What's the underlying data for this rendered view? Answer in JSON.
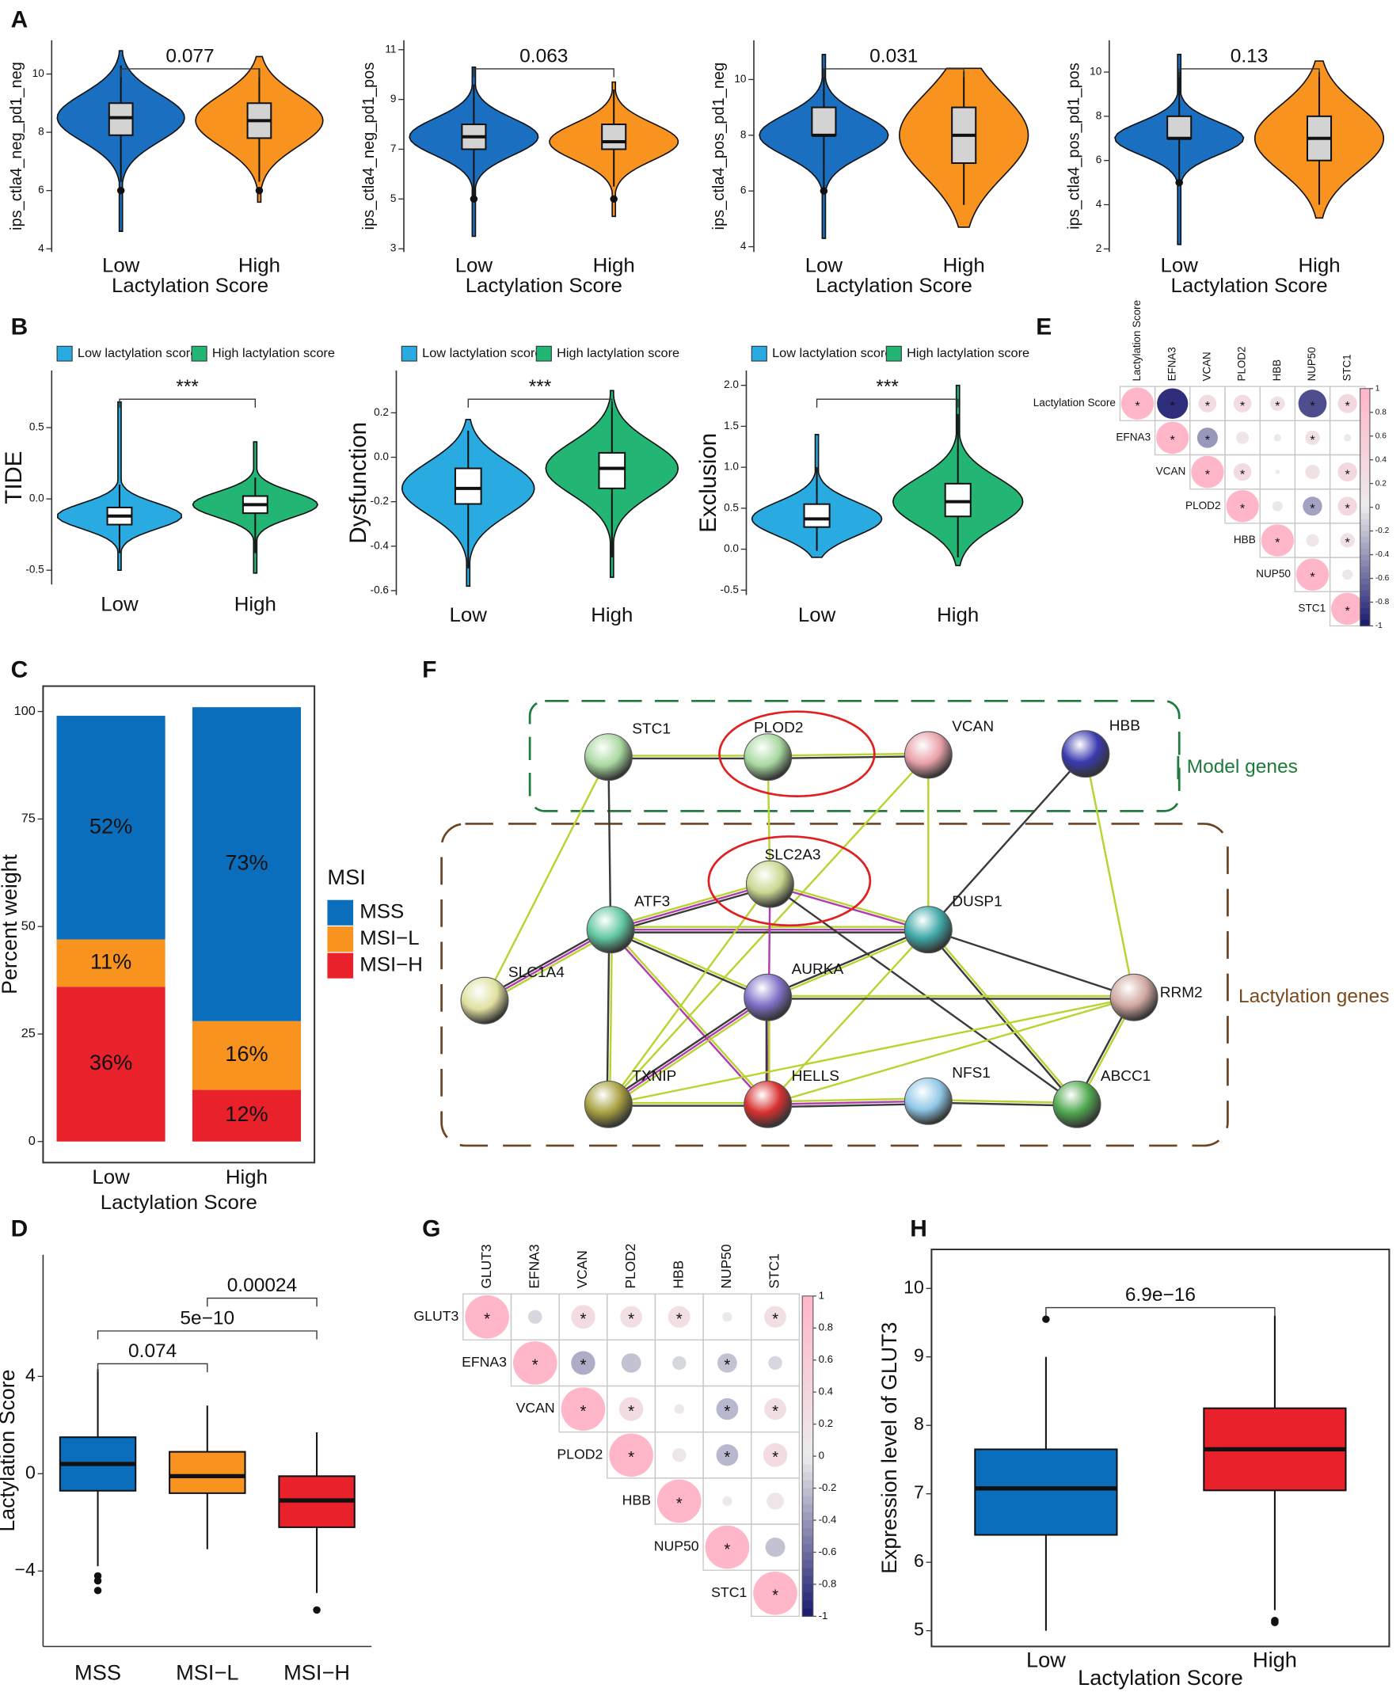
{
  "panel_letters": [
    "A",
    "B",
    "C",
    "D",
    "E",
    "F",
    "G",
    "H"
  ],
  "chart_data": [
    {
      "type": "violin",
      "ylabel": "ips_ctla4_neg_pd1_neg",
      "xlabel": "Lactylation Score",
      "categories": [
        "Low",
        "High"
      ],
      "colors": [
        "#1a6fc0",
        "#f7931e"
      ],
      "ylim": [
        3.89,
        11.16
      ],
      "yticks": [
        4,
        6,
        8,
        10
      ],
      "boxes": [
        {
          "min": 4.6,
          "whisker_low": 6.3,
          "q1": 7.9,
          "median": 8.5,
          "q3": 9.0,
          "whisker_high": 10.3,
          "max": 10.8,
          "outliers": [
            6.0
          ]
        },
        {
          "min": 5.6,
          "whisker_low": 6.3,
          "q1": 7.8,
          "median": 8.4,
          "q3": 9.0,
          "whisker_high": 10.2,
          "max": 10.6,
          "outliers": [
            6.0
          ]
        }
      ],
      "comparisons": [
        {
          "from": "Low",
          "to": "High",
          "label": "0.077"
        }
      ]
    },
    {
      "type": "violin",
      "ylabel": "ips_ctla4_neg_pd1_pos",
      "xlabel": "Lactylation Score",
      "categories": [
        "Low",
        "High"
      ],
      "colors": [
        "#1a6fc0",
        "#f7931e"
      ],
      "ylim": [
        2.87,
        11.38
      ],
      "yticks": [
        3,
        5,
        7,
        9,
        11
      ],
      "boxes": [
        {
          "min": 3.5,
          "whisker_low": 5.0,
          "q1": 7.0,
          "median": 7.5,
          "q3": 8.0,
          "whisker_high": 9.6,
          "max": 10.3,
          "outliers": [
            5.0
          ]
        },
        {
          "min": 4.3,
          "whisker_low": 5.5,
          "q1": 7.0,
          "median": 7.3,
          "q3": 8.0,
          "whisker_high": 9.4,
          "max": 9.7,
          "outliers": [
            5.0
          ]
        }
      ],
      "comparisons": [
        {
          "from": "Low",
          "to": "High",
          "label": "0.063"
        }
      ]
    },
    {
      "type": "violin",
      "ylabel": "ips_ctla4_pos_pd1_neg",
      "xlabel": "Lactylation Score",
      "categories": [
        "Low",
        "High"
      ],
      "colors": [
        "#1a6fc0",
        "#f7931e"
      ],
      "ylim": [
        3.81,
        11.41
      ],
      "yticks": [
        4,
        6,
        8,
        10
      ],
      "boxes": [
        {
          "min": 4.3,
          "whisker_low": 6.0,
          "q1": 8.0,
          "median": 8.0,
          "q3": 9.0,
          "whisker_high": 10.4,
          "max": 10.9,
          "outliers": [
            6.0
          ]
        },
        {
          "min": 4.7,
          "whisker_low": 5.5,
          "q1": 7.0,
          "median": 8.0,
          "q3": 9.0,
          "whisker_high": 10.3,
          "max": 10.4,
          "outliers": []
        }
      ],
      "comparisons": [
        {
          "from": "Low",
          "to": "High",
          "label": "0.031"
        }
      ]
    },
    {
      "type": "violin",
      "ylabel": "ips_ctla4_pos_pd1_pos",
      "xlabel": "Lactylation Score",
      "categories": [
        "Low",
        "High"
      ],
      "colors": [
        "#1a6fc0",
        "#f7931e"
      ],
      "ylim": [
        1.86,
        11.44
      ],
      "yticks": [
        2,
        4,
        6,
        8,
        10
      ],
      "boxes": [
        {
          "min": 2.2,
          "whisker_low": 5.0,
          "q1": 7.0,
          "median": 7.0,
          "q3": 8.0,
          "whisker_high": 10.0,
          "max": 10.8,
          "outliers": [
            5.0
          ]
        },
        {
          "min": 3.4,
          "whisker_low": 4.0,
          "q1": 6.0,
          "median": 7.0,
          "q3": 8.0,
          "whisker_high": 10.0,
          "max": 10.5,
          "outliers": []
        }
      ],
      "comparisons": [
        {
          "from": "Low",
          "to": "High",
          "label": "0.13"
        }
      ]
    },
    {
      "type": "violin",
      "ylabel": "TIDE",
      "categories": [
        "Low",
        "High"
      ],
      "colors": [
        "#29abe2",
        "#22b573"
      ],
      "legend_labels": [
        "Low lactylation score",
        "High lactylation score"
      ],
      "ylim": [
        -0.6,
        0.9
      ],
      "yticks": [
        -0.5,
        {
          "value": 0,
          "label": "0.0"
        },
        0.5
      ],
      "boxes": [
        {
          "min": -0.5,
          "whisker_low": -0.38,
          "q1": -0.18,
          "median": -0.12,
          "q3": -0.06,
          "whisker_high": 0.1,
          "max": 0.68,
          "outliers": []
        },
        {
          "min": -0.52,
          "whisker_low": -0.38,
          "q1": -0.1,
          "median": -0.04,
          "q3": 0.02,
          "whisker_high": 0.15,
          "max": 0.4,
          "outliers": []
        }
      ],
      "comparisons": [
        {
          "from": "Low",
          "to": "High",
          "label": "***"
        }
      ]
    },
    {
      "type": "violin",
      "ylabel": "Dysfunction",
      "categories": [
        "Low",
        "High"
      ],
      "colors": [
        "#29abe2",
        "#22b573"
      ],
      "legend_labels": [
        "Low lactylation score",
        "High lactylation score"
      ],
      "ylim": [
        -0.62,
        0.39
      ],
      "yticks": [
        -0.6,
        -0.4,
        -0.2,
        {
          "value": 0,
          "label": "0.0"
        },
        0.2
      ],
      "boxes": [
        {
          "min": -0.58,
          "whisker_low": -0.5,
          "q1": -0.21,
          "median": -0.14,
          "q3": -0.05,
          "whisker_high": 0.12,
          "max": 0.17,
          "outliers": []
        },
        {
          "min": -0.54,
          "whisker_low": -0.45,
          "q1": -0.14,
          "median": -0.05,
          "q3": 0.02,
          "whisker_high": 0.25,
          "max": 0.3,
          "outliers": []
        }
      ],
      "comparisons": [
        {
          "from": "Low",
          "to": "High",
          "label": "***"
        }
      ]
    },
    {
      "type": "violin",
      "ylabel": "Exclusion",
      "categories": [
        "Low",
        "High"
      ],
      "colors": [
        "#29abe2",
        "#22b573"
      ],
      "legend_labels": [
        "Low lactylation score",
        "High lactylation score"
      ],
      "ylim": [
        -0.56,
        2.18
      ],
      "yticks": [
        -0.5,
        {
          "value": 0,
          "label": "0.0"
        },
        0.5,
        {
          "value": 1,
          "label": "1.0"
        },
        1.5,
        {
          "value": 2,
          "label": "2.0"
        }
      ],
      "boxes": [
        {
          "min": -0.1,
          "whisker_low": -0.02,
          "q1": 0.27,
          "median": 0.37,
          "q3": 0.55,
          "whisker_high": 1.0,
          "max": 1.4,
          "outliers": []
        },
        {
          "min": -0.2,
          "whisker_low": -0.1,
          "q1": 0.4,
          "median": 0.58,
          "q3": 0.8,
          "whisker_high": 1.65,
          "max": 2.0,
          "outliers": []
        }
      ],
      "comparisons": [
        {
          "from": "Low",
          "to": "High",
          "label": "***"
        }
      ]
    },
    {
      "type": "stacked_bar",
      "ylabel": "Percent weight",
      "xlabel": "Lactylation Score",
      "categories": [
        "Low",
        "High"
      ],
      "ylim": [
        -4.9,
        105.9
      ],
      "yticks": [
        0,
        25,
        50,
        75,
        100
      ],
      "legend_title": "MSI",
      "series": [
        {
          "name": "MSS",
          "color": "#0a6ebd",
          "values": [
            52,
            73
          ],
          "value_labels": [
            "52%",
            "73%"
          ]
        },
        {
          "name": "MSI−L",
          "color": "#f7931e",
          "values": [
            11,
            16
          ],
          "value_labels": [
            "11%",
            "16%"
          ]
        },
        {
          "name": "MSI−H",
          "color": "#e8212b",
          "values": [
            36,
            12
          ],
          "value_labels": [
            "36%",
            "12%"
          ]
        }
      ]
    },
    {
      "type": "box",
      "ylabel": "Lactylation Score",
      "categories": [
        "MSS",
        "MSI−L",
        "MSI−H"
      ],
      "colors": [
        "#0a6ebd",
        "#f7931e",
        "#e8212b"
      ],
      "ylim": [
        -7.1,
        9.0
      ],
      "yticks": [
        {
          "value": -4,
          "label": "−4"
        },
        0,
        4
      ],
      "boxes": [
        {
          "whisker_low": -3.8,
          "q1": -0.7,
          "median": 0.4,
          "q3": 1.5,
          "whisker_high": 4.3,
          "outliers": [
            -4.2,
            -4.4,
            -4.8
          ]
        },
        {
          "whisker_low": -3.1,
          "q1": -0.8,
          "median": -0.1,
          "q3": 0.9,
          "whisker_high": 2.8,
          "outliers": []
        },
        {
          "whisker_low": -4.9,
          "q1": -2.2,
          "median": -1.1,
          "q3": -0.1,
          "whisker_high": 1.7,
          "outliers": [
            -5.6
          ]
        }
      ],
      "comparisons": [
        {
          "from": "MSI−L",
          "to": "MSI−H",
          "label": "0.00024"
        },
        {
          "from": "MSS",
          "to": "MSI−H",
          "label": "5e−10"
        },
        {
          "from": "MSS",
          "to": "MSI−L",
          "label": "0.074"
        }
      ]
    },
    {
      "type": "corrplot",
      "labels": [
        "Lactylation Score",
        "EFNA3",
        "VCAN",
        "PLOD2",
        "HBB",
        "NUP50",
        "STC1"
      ],
      "values": [
        [
          1,
          -0.9,
          0.3,
          0.3,
          0.2,
          -0.75,
          0.35
        ],
        [
          1,
          -0.4,
          0.15,
          0.05,
          0.2,
          0.05
        ],
        [
          1,
          0.3,
          0.02,
          0.2,
          0.35
        ],
        [
          1,
          0.1,
          -0.35,
          0.35
        ],
        [
          1,
          0.15,
          0.2
        ],
        [
          1,
          0.1
        ],
        [
          1
        ]
      ],
      "stars": [
        [
          "*",
          "*",
          "*",
          "*",
          "*",
          "*",
          "*"
        ],
        [
          "*",
          "*",
          null,
          null,
          "*",
          null
        ],
        [
          "*",
          "*",
          null,
          null,
          "*"
        ],
        [
          "*",
          null,
          "*",
          "*"
        ],
        [
          "*",
          null,
          "*"
        ],
        [
          "*",
          null
        ],
        [
          "*"
        ]
      ],
      "colorbar_ticks": [
        1,
        0.8,
        0.6,
        0.4,
        0.2,
        0,
        -0.2,
        -0.4,
        -0.6,
        -0.8,
        -1
      ]
    },
    {
      "type": "corrplot",
      "labels": [
        "GLUT3",
        "EFNA3",
        "VCAN",
        "PLOD2",
        "HBB",
        "NUP50",
        "STC1"
      ],
      "values": [
        [
          1,
          -0.1,
          0.3,
          0.25,
          0.25,
          0.05,
          0.25
        ],
        [
          1,
          -0.3,
          -0.2,
          -0.1,
          -0.2,
          -0.1
        ],
        [
          1,
          0.3,
          0.05,
          -0.25,
          0.25
        ],
        [
          1,
          0.1,
          -0.25,
          0.3
        ],
        [
          1,
          0.05,
          0.15
        ],
        [
          1,
          -0.2
        ],
        [
          1
        ]
      ],
      "stars": [
        [
          "*",
          null,
          "*",
          "*",
          "*",
          null,
          "*"
        ],
        [
          "*",
          "*",
          null,
          null,
          "*",
          null
        ],
        [
          "*",
          "*",
          null,
          "*",
          "*"
        ],
        [
          "*",
          null,
          "*",
          "*"
        ],
        [
          "*",
          null,
          null
        ],
        [
          "*",
          null
        ],
        [
          "*"
        ]
      ],
      "colorbar_ticks": [
        1,
        0.8,
        0.6,
        0.4,
        0.2,
        0,
        -0.2,
        -0.4,
        -0.6,
        -0.8,
        -1
      ]
    },
    {
      "type": "box",
      "ylabel": "Expression level of GLUT3",
      "xlabel": "Lactylation Score",
      "categories": [
        "Low",
        "High"
      ],
      "colors": [
        "#0a6ebd",
        "#e8212b"
      ],
      "ylim": [
        4.77,
        10.57
      ],
      "yticks": [
        5,
        6,
        7,
        8,
        9,
        10
      ],
      "boxes": [
        {
          "whisker_low": 5.0,
          "q1": 6.4,
          "median": 7.08,
          "q3": 7.65,
          "whisker_high": 9.0,
          "outliers": [
            9.55
          ]
        },
        {
          "whisker_low": 5.3,
          "q1": 7.05,
          "median": 7.65,
          "q3": 8.25,
          "whisker_high": 9.6,
          "outliers": [
            5.15,
            5.12
          ]
        }
      ],
      "comparisons": [
        {
          "from": "Low",
          "to": "High",
          "label": "6.9e−16"
        }
      ]
    }
  ],
  "network": {
    "nodes": [
      "STC1",
      "PLOD2",
      "VCAN",
      "HBB",
      "SLC2A3",
      "ATF3",
      "DUSP1",
      "SLC1A4",
      "AURKA",
      "RRM2",
      "TXNIP",
      "HELLS",
      "NFS1",
      "ABCC1"
    ],
    "model_genes_label": "Model genes",
    "lactylation_genes_label": "Lactylation genes"
  }
}
